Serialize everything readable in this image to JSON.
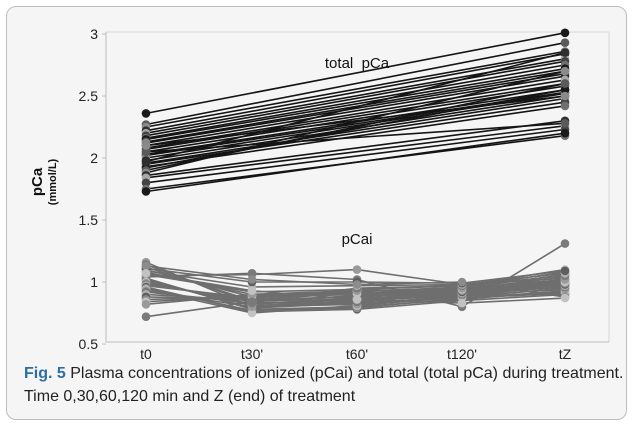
{
  "chart_data": {
    "type": "line",
    "ylabel": "pCa",
    "ylabel_unit": "(mmol/L)",
    "categories": [
      "t0",
      "t30'",
      "t60'",
      "t120'",
      "tZ"
    ],
    "ylim": [
      0.5,
      3
    ],
    "yticks": [
      "0.5",
      "1",
      "1.5",
      "2",
      "2.5",
      "3"
    ],
    "grid": false,
    "annotations": [
      "total  pCa",
      "pCai"
    ],
    "colors": {
      "total_line": "#141414",
      "pcai_line": "#6e6e6e"
    },
    "total_pCa": {
      "x_categories": [
        "t0",
        "tZ"
      ],
      "series": [
        {
          "values": [
            2.36,
            3.01
          ]
        },
        {
          "values": [
            2.27,
            2.93
          ]
        },
        {
          "values": [
            2.25,
            2.86
          ]
        },
        {
          "values": [
            2.22,
            2.84
          ]
        },
        {
          "values": [
            2.2,
            2.8
          ]
        },
        {
          "values": [
            2.18,
            2.78
          ]
        },
        {
          "values": [
            2.16,
            2.75
          ]
        },
        {
          "values": [
            2.15,
            2.72
          ]
        },
        {
          "values": [
            2.13,
            2.7
          ]
        },
        {
          "values": [
            2.12,
            2.68
          ]
        },
        {
          "values": [
            2.1,
            2.66
          ]
        },
        {
          "values": [
            2.08,
            2.63
          ]
        },
        {
          "values": [
            2.07,
            2.6
          ]
        },
        {
          "values": [
            2.05,
            2.58
          ]
        },
        {
          "values": [
            2.03,
            2.55
          ]
        },
        {
          "values": [
            2.02,
            2.53
          ]
        },
        {
          "values": [
            2.0,
            2.52
          ]
        },
        {
          "values": [
            1.98,
            2.5
          ]
        },
        {
          "values": [
            1.96,
            2.48
          ]
        },
        {
          "values": [
            1.95,
            2.45
          ]
        },
        {
          "values": [
            1.93,
            2.42
          ]
        },
        {
          "values": [
            1.92,
            2.55
          ]
        },
        {
          "values": [
            1.9,
            2.6
          ]
        },
        {
          "values": [
            1.88,
            2.7
          ]
        },
        {
          "values": [
            1.86,
            2.3
          ]
        },
        {
          "values": [
            1.84,
            2.26
          ]
        },
        {
          "values": [
            1.8,
            2.23
          ]
        },
        {
          "values": [
            1.75,
            2.18
          ]
        },
        {
          "values": [
            1.73,
            2.2
          ]
        },
        {
          "values": [
            2.05,
            2.28
          ]
        },
        {
          "values": [
            2.1,
            2.5
          ]
        },
        {
          "values": [
            1.97,
            2.85
          ]
        }
      ]
    },
    "pCai": {
      "x_categories": [
        "t0",
        "t30'",
        "t60'",
        "t120'",
        "tZ"
      ],
      "series": [
        {
          "values": [
            1.16,
            0.8,
            0.84,
            0.92,
            1.0
          ]
        },
        {
          "values": [
            1.14,
            0.83,
            0.86,
            0.93,
            1.02
          ]
        },
        {
          "values": [
            1.12,
            0.85,
            0.88,
            0.94,
            1.04
          ]
        },
        {
          "values": [
            1.1,
            0.88,
            0.9,
            0.95,
            1.06
          ]
        },
        {
          "values": [
            1.08,
            0.9,
            0.92,
            0.96,
            1.08
          ]
        },
        {
          "values": [
            1.06,
            0.92,
            0.94,
            0.97,
            1.1
          ]
        },
        {
          "values": [
            1.05,
            1.06,
            1.1,
            0.98,
            1.03
          ]
        },
        {
          "values": [
            1.04,
            1.07,
            1.02,
            0.8,
            1.31
          ]
        },
        {
          "values": [
            1.03,
            0.78,
            0.8,
            0.86,
            0.93
          ]
        },
        {
          "values": [
            1.02,
            0.79,
            0.83,
            0.88,
            0.95
          ]
        },
        {
          "values": [
            1.01,
            0.81,
            0.85,
            0.89,
            0.97
          ]
        },
        {
          "values": [
            1.0,
            0.82,
            0.87,
            0.9,
            0.98
          ]
        },
        {
          "values": [
            0.99,
            0.84,
            0.89,
            0.91,
            0.99
          ]
        },
        {
          "values": [
            0.98,
            0.86,
            0.91,
            0.92,
            1.0
          ]
        },
        {
          "values": [
            0.97,
            0.87,
            0.93,
            0.93,
            1.01
          ]
        },
        {
          "values": [
            0.96,
            0.76,
            0.78,
            0.85,
            0.9
          ]
        },
        {
          "values": [
            0.95,
            0.77,
            0.79,
            0.87,
            0.91
          ]
        },
        {
          "values": [
            0.94,
            0.75,
            0.81,
            0.88,
            0.92
          ]
        },
        {
          "values": [
            0.93,
            0.8,
            0.82,
            0.89,
            0.94
          ]
        },
        {
          "values": [
            0.92,
            0.83,
            0.84,
            0.9,
            0.96
          ]
        },
        {
          "values": [
            0.9,
            0.85,
            0.86,
            0.91,
            0.97
          ]
        },
        {
          "values": [
            0.88,
            0.86,
            0.88,
            0.92,
            0.98
          ]
        },
        {
          "values": [
            0.86,
            0.88,
            0.9,
            0.93,
            0.99
          ]
        },
        {
          "values": [
            0.84,
            0.89,
            0.91,
            0.94,
            1.0
          ]
        },
        {
          "values": [
            0.82,
            0.9,
            0.93,
            0.95,
            1.02
          ]
        },
        {
          "values": [
            0.72,
            0.84,
            0.95,
            0.97,
            1.05
          ]
        },
        {
          "values": [
            1.09,
            0.96,
            0.97,
            0.98,
            1.07
          ]
        },
        {
          "values": [
            1.11,
            1.0,
            1.0,
            0.99,
            1.09
          ]
        },
        {
          "values": [
            1.13,
            1.02,
            0.98,
            1.0,
            0.88
          ]
        },
        {
          "values": [
            1.07,
            0.93,
            0.86,
            0.83,
            0.87
          ]
        }
      ]
    }
  },
  "caption": {
    "label": "Fig. 5",
    "text": " Plasma concentrations of ionized (pCai) and total (total pCa) during treatment. Time 0,30,60,120 min and Z (end) of treatment"
  }
}
